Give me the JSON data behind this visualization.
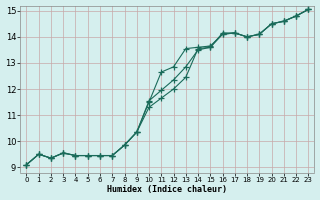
{
  "xlabel": "Humidex (Indice chaleur)",
  "xlim": [
    -0.5,
    23.5
  ],
  "ylim": [
    8.8,
    15.2
  ],
  "xticks": [
    0,
    1,
    2,
    3,
    4,
    5,
    6,
    7,
    8,
    9,
    10,
    11,
    12,
    13,
    14,
    15,
    16,
    17,
    18,
    19,
    20,
    21,
    22,
    23
  ],
  "yticks": [
    9,
    10,
    11,
    12,
    13,
    14,
    15
  ],
  "background_color": "#d5efee",
  "grid_color": "#c8a8a8",
  "line_color": "#1a6b5a",
  "line1_x": [
    0,
    1,
    2,
    3,
    4,
    5,
    6,
    7,
    8,
    9,
    10,
    11,
    12,
    13,
    14,
    15,
    16,
    17,
    18,
    19,
    20,
    21,
    22,
    23
  ],
  "line1_y": [
    9.1,
    9.5,
    9.35,
    9.55,
    9.45,
    9.45,
    9.45,
    9.45,
    9.85,
    10.35,
    11.55,
    11.95,
    12.35,
    12.85,
    13.5,
    13.6,
    14.15,
    14.15,
    14.0,
    14.1,
    14.5,
    14.6,
    14.8,
    15.05
  ],
  "line2_x": [
    0,
    1,
    2,
    3,
    4,
    5,
    6,
    7,
    8,
    9,
    10,
    11,
    12,
    13,
    14,
    15,
    16,
    17,
    18,
    19,
    20,
    21,
    22,
    23
  ],
  "line2_y": [
    9.1,
    9.5,
    9.35,
    9.55,
    9.45,
    9.45,
    9.45,
    9.45,
    9.85,
    10.35,
    11.3,
    11.65,
    12.0,
    12.45,
    13.55,
    13.6,
    14.1,
    14.15,
    14.0,
    14.1,
    14.5,
    14.6,
    14.8,
    15.05
  ],
  "line3_x": [
    0,
    1,
    2,
    3,
    4,
    5,
    6,
    7,
    8,
    9,
    10,
    11,
    12,
    13,
    14,
    15,
    16,
    17,
    18,
    19,
    20,
    21,
    22,
    23
  ],
  "line3_y": [
    9.1,
    9.5,
    9.35,
    9.55,
    9.45,
    9.45,
    9.45,
    9.45,
    9.85,
    10.35,
    11.5,
    12.65,
    12.85,
    13.55,
    13.6,
    13.65,
    14.1,
    14.15,
    14.0,
    14.1,
    14.5,
    14.6,
    14.8,
    15.05
  ]
}
